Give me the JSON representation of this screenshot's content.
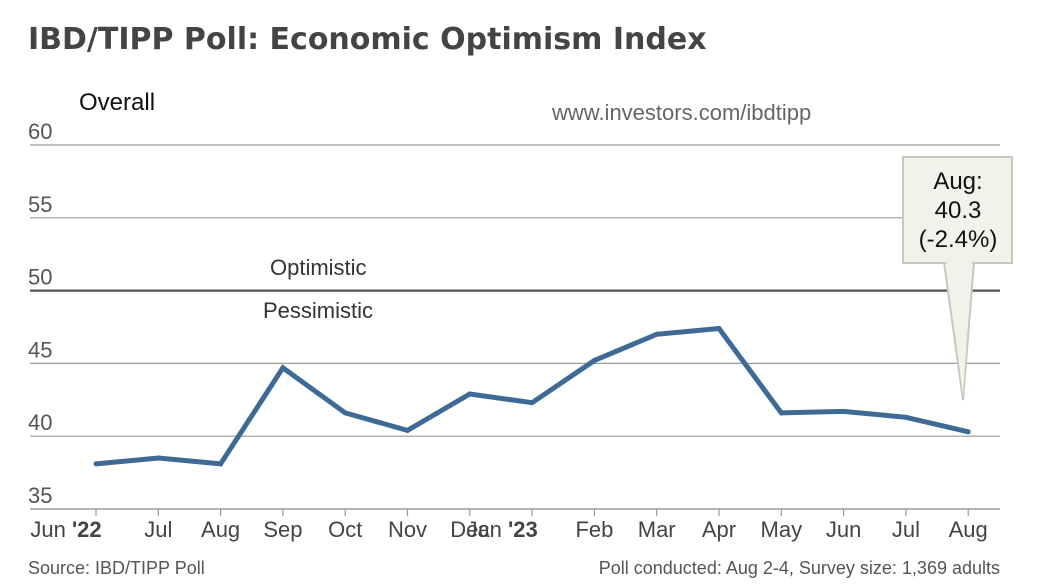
{
  "chart_data": {
    "type": "line",
    "title": "IBD/TIPP Poll: Economic Optimism Index",
    "subtitle": "Overall",
    "url": "www.investors.com/ibdtipp",
    "categories": [
      "Jun",
      "Jul",
      "Aug",
      "Sep",
      "Oct",
      "Nov",
      "Dec",
      "Jan",
      "Feb",
      "Mar",
      "Apr",
      "May",
      "Jun",
      "Jul",
      "Aug"
    ],
    "year_labels": [
      "'22",
      "",
      "",
      "",
      "",
      "",
      "",
      "'23",
      "",
      "",
      "",
      "",
      "",
      "",
      ""
    ],
    "series": [
      {
        "name": "Economic Optimism Index",
        "color": "#3e6a96",
        "values": [
          38.1,
          38.5,
          38.1,
          44.7,
          41.6,
          40.4,
          42.9,
          42.3,
          45.2,
          47.0,
          47.4,
          41.6,
          41.7,
          41.3,
          40.3
        ]
      }
    ],
    "ylim": [
      35,
      60
    ],
    "yticks": [
      "60",
      "55",
      "50",
      "45",
      "40",
      "35"
    ],
    "reference_line": {
      "value": 50,
      "above_label": "Optimistic",
      "below_label": "Pessimistic"
    },
    "callout": {
      "lines": [
        "Aug:",
        "40.3",
        "(-2.4%)"
      ]
    },
    "source": "Source: IBD/TIPP Poll",
    "note": "Poll conducted:  Aug 2-4, Survey size: 1,369 adults"
  }
}
